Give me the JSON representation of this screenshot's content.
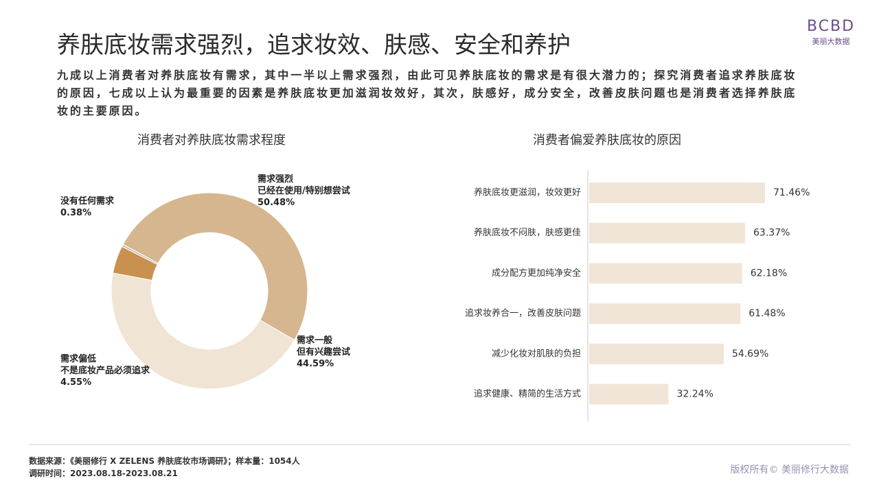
{
  "header": {
    "title": "养肤底妆需求强烈，追求妆效、肤感、安全和养护",
    "logo": "BCBD",
    "logo_sub": "美丽大数据",
    "subtitle": "九成以上消费者对养肤底妆有需求，其中一半以上需求强烈，由此可见养肤底妆的需求是有很大潜力的；探究消费者追求养肤底妆的原因，七成以上认为最重要的因素是养肤底妆更加滋润妆效好，其次，肤感好，成分安全，改善皮肤问题也是消费者选择养肤底妆的主要原因。"
  },
  "chart_data": [
    {
      "type": "donut",
      "title": "消费者对养肤底妆需求程度",
      "categories": [
        "需求强烈\n已经在使用/特别想尝试",
        "需求一般\n但有兴趣尝试",
        "需求偏低\n不是底妆产品必须追求",
        "没有任何需求"
      ],
      "values": [
        50.48,
        44.59,
        4.55,
        0.38
      ],
      "value_labels": [
        "50.48%",
        "44.59%",
        "4.55%",
        "0.38%"
      ],
      "colors": [
        "#d6b68e",
        "#f0e4d4",
        "#c9914f",
        "#c9c2ba"
      ]
    },
    {
      "type": "hbar",
      "title": "消费者偏爱养肤底妆的原因",
      "categories": [
        "养肤底妆更滋润，妆效更好",
        "养肤底妆不闷肤，肤感更佳",
        "成分配方更加纯净安全",
        "追求妆养合一，改善皮肤问题",
        "减少化妆对肌肤的负担",
        "追求健康、精简的生活方式"
      ],
      "values": [
        71.46,
        63.37,
        62.18,
        61.48,
        54.69,
        32.24
      ],
      "value_labels": [
        "71.46%",
        "63.37%",
        "62.18%",
        "61.48%",
        "54.69%",
        "32.24%"
      ],
      "color": "#f1e5d7"
    }
  ],
  "footer": {
    "source": "数据来源：《美丽修行 X ZELENS 养肤底妆市场调研》；样本量：1054人",
    "date": "调研时间：2023.08.18-2023.08.21",
    "copyright": "版权所有© 美丽修行大数据"
  }
}
